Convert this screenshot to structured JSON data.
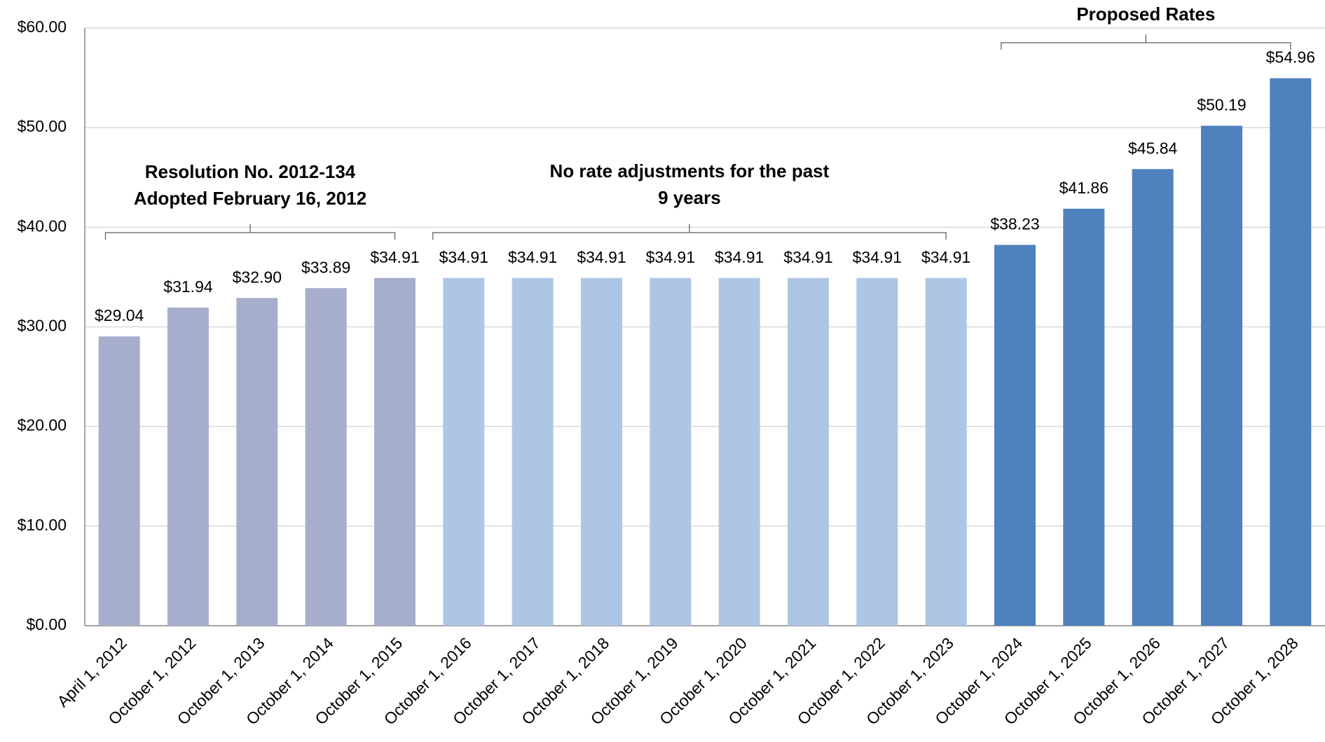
{
  "chart_data": {
    "type": "bar",
    "categories": [
      "April 1, 2012",
      "October 1, 2012",
      "October 1, 2013",
      "October 1, 2014",
      "October 1, 2015",
      "October 1, 2016",
      "October 1, 2017",
      "October 1, 2018",
      "October 1, 2019",
      "October 1, 2020",
      "October 1, 2021",
      "October 1, 2022",
      "October 1, 2023",
      "October 1, 2024",
      "October 1, 2025",
      "October 1, 2026",
      "October 1, 2027",
      "October 1, 2028"
    ],
    "values": [
      29.04,
      31.94,
      32.9,
      33.89,
      34.91,
      34.91,
      34.91,
      34.91,
      34.91,
      34.91,
      34.91,
      34.91,
      34.91,
      38.23,
      41.86,
      45.84,
      50.19,
      54.96
    ],
    "value_labels": [
      "$29.04",
      "$31.94",
      "$32.90",
      "$33.89",
      "$34.91",
      "$34.91",
      "$34.91",
      "$34.91",
      "$34.91",
      "$34.91",
      "$34.91",
      "$34.91",
      "$34.91",
      "$38.23",
      "$41.86",
      "$45.84",
      "$50.19",
      "$54.96"
    ],
    "colors": [
      "#a7aecd",
      "#a7aecd",
      "#a7aecd",
      "#a7aecd",
      "#a7aecd",
      "#aec6e6",
      "#aec6e6",
      "#aec6e6",
      "#aec6e6",
      "#aec6e6",
      "#aec6e6",
      "#aec6e6",
      "#aec6e6",
      "#4f81bd",
      "#4f81bd",
      "#4f81bd",
      "#4f81bd",
      "#4f81bd"
    ],
    "ylim": [
      0,
      60
    ],
    "yticks": [
      {
        "value": 0,
        "label": "$0.00"
      },
      {
        "value": 10,
        "label": "$10.00"
      },
      {
        "value": 20,
        "label": "$20.00"
      },
      {
        "value": 30,
        "label": "$30.00"
      },
      {
        "value": 40,
        "label": "$40.00"
      },
      {
        "value": 50,
        "label": "$50.00"
      },
      {
        "value": 60,
        "label": "$60.00"
      }
    ],
    "grid": true,
    "annotations": [
      {
        "lines": [
          "Resolution No. 2012-134",
          "Adopted February 16, 2012"
        ]
      },
      {
        "lines": [
          "No rate adjustments for the past",
          "9 years"
        ]
      },
      {
        "lines": [
          "Proposed Rates"
        ]
      }
    ]
  }
}
